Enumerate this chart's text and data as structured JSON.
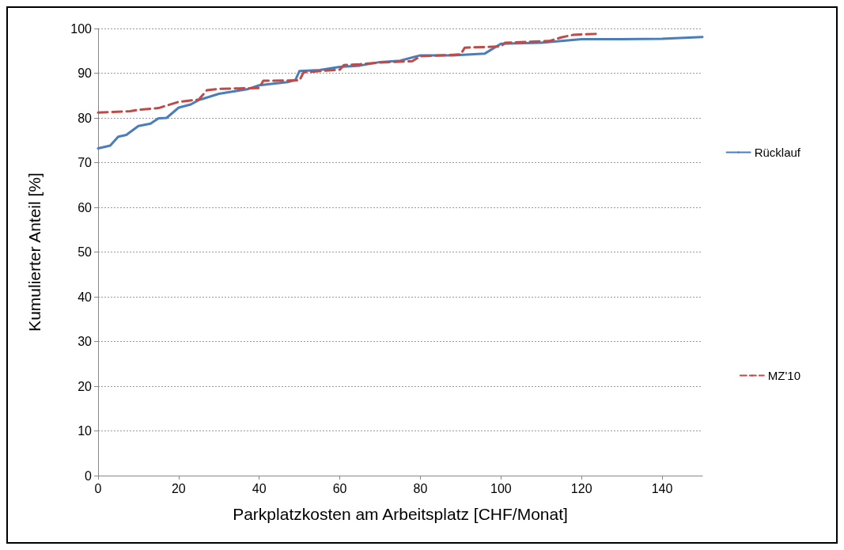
{
  "chart_data": {
    "type": "line",
    "xlabel": "Parkplatzkosten am Arbeitsplatz [CHF/Monat]",
    "ylabel": "Kumulierter Anteil [%]",
    "xlim": [
      0,
      150
    ],
    "xticks": [
      0,
      20,
      40,
      60,
      80,
      100,
      120,
      140
    ],
    "ylim": [
      0,
      100
    ],
    "yticks": [
      0,
      10,
      20,
      30,
      40,
      50,
      60,
      70,
      80,
      90,
      100
    ],
    "grid": "y",
    "legend": "right",
    "marker": "none",
    "series": [
      {
        "name": "Rücklauf",
        "color": "#4a7ebb",
        "line_style": "solid",
        "x": [
          0,
          3,
          5,
          7,
          10,
          13,
          15,
          17,
          20,
          23,
          25,
          30,
          37,
          40,
          47,
          49,
          50,
          55,
          60,
          65,
          70,
          75,
          80,
          88,
          96,
          100,
          110,
          120,
          130,
          140,
          150
        ],
        "values": [
          73.2,
          73.8,
          75.8,
          76.2,
          78.2,
          78.7,
          79.9,
          80.0,
          82.3,
          83.0,
          84.0,
          85.4,
          86.4,
          87.3,
          88.0,
          88.5,
          90.5,
          90.7,
          91.4,
          91.7,
          92.5,
          92.8,
          94.0,
          94.0,
          94.4,
          96.6,
          96.8,
          97.6,
          97.6,
          97.7,
          98.1
        ]
      },
      {
        "name": "MZ'10",
        "color": "#be4b48",
        "line_style": "dashed",
        "x": [
          0,
          8,
          10,
          15,
          20,
          25,
          27,
          30,
          35,
          40,
          41,
          50,
          51,
          60,
          61,
          65,
          70,
          78,
          80,
          90,
          91,
          100,
          101,
          112,
          115,
          118,
          124
        ],
        "values": [
          81.2,
          81.5,
          81.8,
          82.2,
          83.6,
          84.1,
          86.2,
          86.5,
          86.6,
          86.7,
          88.3,
          88.4,
          90.2,
          90.8,
          91.8,
          92.0,
          92.4,
          92.7,
          93.8,
          94.2,
          95.7,
          96.0,
          96.8,
          97.2,
          98.0,
          98.6,
          98.8
        ]
      }
    ]
  }
}
